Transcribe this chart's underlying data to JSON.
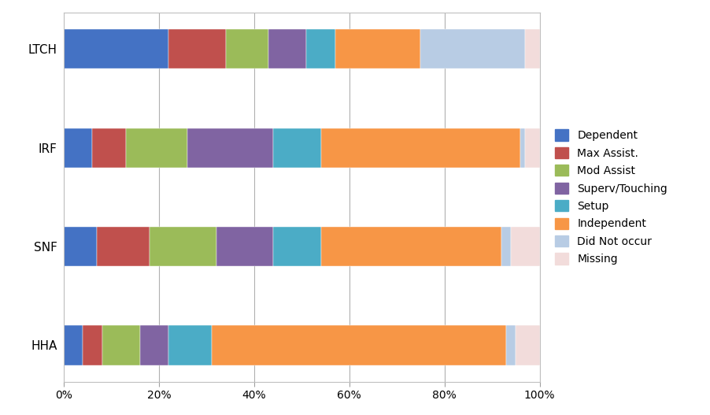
{
  "categories": [
    "LTCH",
    "IRF",
    "SNF",
    "HHA"
  ],
  "segments": [
    {
      "label": "Dependent",
      "color": "#4472C4",
      "values": [
        22,
        6,
        7,
        4
      ]
    },
    {
      "label": "Max Assist.",
      "color": "#C0504D",
      "values": [
        12,
        7,
        11,
        4
      ]
    },
    {
      "label": "Mod Assist",
      "color": "#9BBB59",
      "values": [
        9,
        13,
        14,
        8
      ]
    },
    {
      "label": "Superv/Touching",
      "color": "#8064A2",
      "values": [
        8,
        18,
        12,
        6
      ]
    },
    {
      "label": "Setup",
      "color": "#4BACC6",
      "values": [
        6,
        10,
        10,
        9
      ]
    },
    {
      "label": "Independent",
      "color": "#F79646",
      "values": [
        18,
        42,
        38,
        62
      ]
    },
    {
      "label": "Did Not occur",
      "color": "#B8CCE4",
      "values": [
        22,
        1,
        2,
        2
      ]
    },
    {
      "label": "Missing",
      "color": "#F2DCDB",
      "values": [
        3,
        3,
        6,
        5
      ]
    }
  ],
  "xlim": [
    0,
    100
  ],
  "xtick_labels": [
    "0%",
    "20%",
    "40%",
    "60%",
    "80%",
    "100%"
  ],
  "xtick_values": [
    0,
    20,
    40,
    60,
    80,
    100
  ],
  "background_color": "#FFFFFF",
  "plot_bg_color": "#FFFFFF",
  "grid_color": "#B0B0B0",
  "bar_height": 0.4,
  "figsize": [
    9.02,
    5.27
  ],
  "dpi": 100,
  "legend_fontsize": 10,
  "tick_fontsize": 10,
  "ylabel_fontsize": 11
}
